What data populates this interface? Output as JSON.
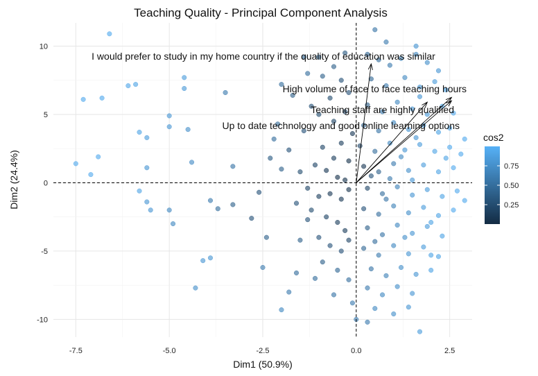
{
  "chart_data": {
    "type": "scatter",
    "title": "Teaching Quality - Principal Component Analysis",
    "xlabel": "Dim1 (50.9%)",
    "ylabel": "Dim2 (24.4%)",
    "xlim": [
      -8.1,
      3.1
    ],
    "ylim": [
      -11.3,
      11.7
    ],
    "xticks": [
      -7.5,
      -5.0,
      -2.5,
      0.0,
      2.5
    ],
    "xtick_labels": [
      "-7.5",
      "-5.0",
      "-2.5",
      "0.0",
      "2.5"
    ],
    "yticks": [
      -10,
      -5,
      0,
      5,
      10
    ],
    "ytick_labels": [
      "-10",
      "-5",
      "0",
      "5",
      "10"
    ],
    "grid": true,
    "reference_lines": {
      "x": 0,
      "y": 0,
      "style": "dashed"
    },
    "legend": {
      "title": "cos2",
      "position": "right",
      "ticks": [
        0.25,
        0.5,
        0.75
      ],
      "tick_labels": [
        "0.25",
        "0.50",
        "0.75"
      ],
      "low_color": "#132B43",
      "high_color": "#56B1F7"
    },
    "variables": [
      {
        "name": "I would prefer to study in my home country if the quality of education was similar",
        "x": 0.4,
        "y": 8.7
      },
      {
        "name": "High volume of face to face teaching hours",
        "x": 2.55,
        "y": 6.25
      },
      {
        "name": "Teaching staff are highly qualified",
        "x": 1.9,
        "y": 5.9
      },
      {
        "name": "Up to date technology and good online learning options",
        "x": 2.55,
        "y": 6.0
      }
    ],
    "points": [
      [
        -6.6,
        10.9,
        0.95
      ],
      [
        -7.3,
        6.1,
        0.95
      ],
      [
        -6.8,
        6.2,
        0.95
      ],
      [
        -6.1,
        7.1,
        0.92
      ],
      [
        -5.9,
        7.2,
        0.9
      ],
      [
        -5.8,
        3.7,
        0.9
      ],
      [
        -5.6,
        3.3,
        0.85
      ],
      [
        -4.6,
        7.7,
        0.85
      ],
      [
        -4.6,
        6.9,
        0.82
      ],
      [
        -5.0,
        4.9,
        0.8
      ],
      [
        -5.0,
        4.1,
        0.8
      ],
      [
        -4.5,
        3.9,
        0.75
      ],
      [
        -4.4,
        1.5,
        0.72
      ],
      [
        -5.6,
        1.1,
        0.8
      ],
      [
        -7.5,
        1.4,
        0.95
      ],
      [
        -7.1,
        0.6,
        0.95
      ],
      [
        -6.9,
        1.9,
        0.95
      ],
      [
        -5.8,
        -0.6,
        0.9
      ],
      [
        -5.6,
        -1.4,
        0.8
      ],
      [
        -5.5,
        -2.0,
        0.8
      ],
      [
        -5.0,
        -2.0,
        0.7
      ],
      [
        -4.9,
        -3.0,
        0.7
      ],
      [
        -3.9,
        -5.5,
        0.8
      ],
      [
        -4.1,
        -5.7,
        0.8
      ],
      [
        -4.3,
        -7.7,
        0.75
      ],
      [
        -3.5,
        6.6,
        0.6
      ],
      [
        -3.3,
        1.2,
        0.55
      ],
      [
        -3.3,
        -1.6,
        0.4
      ],
      [
        -2.8,
        -2.6,
        0.3
      ],
      [
        -3.9,
        -1.3,
        0.6
      ],
      [
        -3.7,
        -1.9,
        0.5
      ],
      [
        -2.1,
        4.3,
        0.5
      ],
      [
        -2.0,
        7.2,
        0.5
      ],
      [
        -2.0,
        1.0,
        0.4
      ],
      [
        -2.2,
        3.2,
        0.5
      ],
      [
        -2.3,
        1.8,
        0.35
      ],
      [
        -2.6,
        -0.7,
        0.3
      ],
      [
        -2.4,
        -4.0,
        0.4
      ],
      [
        -2.5,
        -6.2,
        0.6
      ],
      [
        -2.0,
        -9.3,
        0.7
      ],
      [
        -1.8,
        -8.0,
        0.6
      ],
      [
        -1.6,
        -6.6,
        0.5
      ],
      [
        -1.5,
        -4.2,
        0.4
      ],
      [
        -1.3,
        -2.7,
        0.3
      ],
      [
        -1.7,
        6.4,
        0.4
      ],
      [
        -1.4,
        9.2,
        0.5
      ],
      [
        -1.3,
        8.0,
        0.5
      ],
      [
        -1.0,
        9.2,
        0.45
      ],
      [
        -0.9,
        7.8,
        0.4
      ],
      [
        -1.2,
        5.6,
        0.3
      ],
      [
        -0.6,
        8.5,
        0.4
      ],
      [
        -0.4,
        7.5,
        0.3
      ],
      [
        -0.3,
        9.5,
        0.35
      ],
      [
        -0.7,
        6.2,
        0.25
      ],
      [
        -0.2,
        6.6,
        0.3
      ],
      [
        -1.8,
        2.4,
        0.3
      ],
      [
        -1.5,
        0.8,
        0.25
      ],
      [
        -1.1,
        1.3,
        0.2
      ],
      [
        -0.8,
        0.9,
        0.1
      ],
      [
        -0.5,
        0.4,
        0.05
      ],
      [
        -0.3,
        0.2,
        0.05
      ],
      [
        -0.6,
        1.8,
        0.15
      ],
      [
        -0.9,
        2.6,
        0.2
      ],
      [
        -0.4,
        2.9,
        0.15
      ],
      [
        -1.3,
        -0.4,
        0.2
      ],
      [
        -1.0,
        -1.0,
        0.15
      ],
      [
        -0.7,
        -0.8,
        0.1
      ],
      [
        -0.4,
        -1.2,
        0.1
      ],
      [
        -0.2,
        -0.5,
        0.05
      ],
      [
        -1.2,
        -2.0,
        0.25
      ],
      [
        -0.8,
        -2.5,
        0.2
      ],
      [
        -0.5,
        -2.9,
        0.15
      ],
      [
        -0.3,
        -3.5,
        0.15
      ],
      [
        -1.0,
        -4.0,
        0.3
      ],
      [
        -0.7,
        -4.6,
        0.3
      ],
      [
        -0.4,
        -5.0,
        0.3
      ],
      [
        -0.2,
        -4.2,
        0.2
      ],
      [
        -0.9,
        -5.8,
        0.4
      ],
      [
        -0.5,
        -6.4,
        0.45
      ],
      [
        -0.2,
        -7.1,
        0.5
      ],
      [
        -1.1,
        -7.0,
        0.5
      ],
      [
        -0.6,
        -8.2,
        0.55
      ],
      [
        -0.1,
        -8.8,
        0.6
      ],
      [
        -1.4,
        3.8,
        0.3
      ],
      [
        -0.6,
        4.5,
        0.2
      ],
      [
        -0.3,
        5.2,
        0.2
      ],
      [
        -1.0,
        5.0,
        0.25
      ],
      [
        -0.1,
        3.6,
        0.1
      ],
      [
        -0.2,
        1.6,
        0.05
      ],
      [
        -1.6,
        -1.5,
        0.3
      ],
      [
        0.3,
        9.4,
        0.45
      ],
      [
        0.6,
        9.0,
        0.5
      ],
      [
        0.9,
        8.6,
        0.6
      ],
      [
        1.2,
        9.1,
        0.65
      ],
      [
        1.6,
        9.4,
        0.7
      ],
      [
        1.9,
        8.8,
        0.75
      ],
      [
        2.2,
        8.2,
        0.8
      ],
      [
        1.6,
        10.0,
        0.8
      ],
      [
        0.8,
        10.3,
        0.6
      ],
      [
        0.4,
        7.6,
        0.45
      ],
      [
        0.8,
        7.1,
        0.6
      ],
      [
        1.3,
        7.7,
        0.7
      ],
      [
        1.7,
        7.0,
        0.8
      ],
      [
        2.1,
        7.4,
        0.85
      ],
      [
        2.4,
        6.8,
        0.9
      ],
      [
        0.3,
        5.7,
        0.4
      ],
      [
        0.7,
        5.2,
        0.6
      ],
      [
        1.1,
        5.9,
        0.7
      ],
      [
        1.5,
        5.4,
        0.8
      ],
      [
        1.9,
        5.0,
        0.85
      ],
      [
        2.3,
        5.6,
        0.9
      ],
      [
        2.6,
        5.1,
        0.95
      ],
      [
        0.2,
        4.2,
        0.35
      ],
      [
        0.6,
        3.8,
        0.55
      ],
      [
        1.0,
        4.4,
        0.7
      ],
      [
        1.4,
        3.9,
        0.8
      ],
      [
        1.8,
        4.2,
        0.85
      ],
      [
        2.2,
        3.7,
        0.9
      ],
      [
        2.5,
        4.0,
        0.95
      ],
      [
        0.1,
        2.7,
        0.2
      ],
      [
        0.5,
        2.3,
        0.5
      ],
      [
        0.9,
        2.9,
        0.7
      ],
      [
        1.3,
        2.4,
        0.8
      ],
      [
        1.7,
        2.8,
        0.85
      ],
      [
        2.1,
        2.3,
        0.9
      ],
      [
        2.5,
        2.6,
        0.95
      ],
      [
        2.8,
        2.1,
        0.95
      ],
      [
        0.2,
        1.2,
        0.1
      ],
      [
        0.6,
        0.8,
        0.4
      ],
      [
        1.0,
        1.4,
        0.6
      ],
      [
        1.4,
        0.9,
        0.75
      ],
      [
        1.8,
        1.3,
        0.85
      ],
      [
        2.2,
        0.8,
        0.9
      ],
      [
        2.6,
        1.1,
        0.95
      ],
      [
        0.3,
        -0.4,
        0.2
      ],
      [
        0.7,
        -0.8,
        0.5
      ],
      [
        1.1,
        -0.3,
        0.65
      ],
      [
        1.5,
        -0.9,
        0.8
      ],
      [
        1.9,
        -0.5,
        0.85
      ],
      [
        2.3,
        -1.0,
        0.9
      ],
      [
        2.7,
        -0.6,
        0.95
      ],
      [
        0.2,
        -1.9,
        0.3
      ],
      [
        0.6,
        -2.3,
        0.5
      ],
      [
        1.0,
        -1.7,
        0.65
      ],
      [
        1.4,
        -2.2,
        0.75
      ],
      [
        1.8,
        -1.8,
        0.85
      ],
      [
        2.2,
        -2.4,
        0.9
      ],
      [
        2.6,
        -2.0,
        0.95
      ],
      [
        0.3,
        -3.3,
        0.4
      ],
      [
        0.7,
        -3.8,
        0.55
      ],
      [
        1.1,
        -3.1,
        0.7
      ],
      [
        1.5,
        -3.7,
        0.8
      ],
      [
        1.9,
        -3.2,
        0.85
      ],
      [
        2.3,
        -3.9,
        0.9
      ],
      [
        0.2,
        -4.8,
        0.45
      ],
      [
        0.6,
        -5.3,
        0.6
      ],
      [
        1.0,
        -4.6,
        0.7
      ],
      [
        1.4,
        -5.2,
        0.8
      ],
      [
        1.8,
        -4.7,
        0.85
      ],
      [
        2.2,
        -5.4,
        0.9
      ],
      [
        2.0,
        -5.3,
        0.9
      ],
      [
        0.4,
        -6.3,
        0.55
      ],
      [
        0.8,
        -6.8,
        0.65
      ],
      [
        1.2,
        -6.2,
        0.75
      ],
      [
        1.6,
        -6.7,
        0.8
      ],
      [
        2.0,
        -6.4,
        0.9
      ],
      [
        0.3,
        -7.7,
        0.6
      ],
      [
        0.7,
        -8.2,
        0.7
      ],
      [
        1.1,
        -7.6,
        0.75
      ],
      [
        1.5,
        -8.1,
        0.8
      ],
      [
        0.5,
        -9.2,
        0.7
      ],
      [
        1.0,
        -9.6,
        0.75
      ],
      [
        1.4,
        -9.1,
        0.8
      ],
      [
        0.0,
        -10.0,
        0.6
      ],
      [
        0.3,
        -10.2,
        0.6
      ],
      [
        1.7,
        -10.9,
        0.85
      ],
      [
        0.5,
        11.2,
        0.55
      ],
      [
        1.5,
        0.2,
        0.8
      ],
      [
        0.9,
        0.3,
        0.6
      ],
      [
        0.4,
        0.5,
        0.3
      ],
      [
        2.9,
        3.2,
        0.95
      ],
      [
        2.9,
        -1.3,
        0.95
      ],
      [
        2.4,
        1.8,
        0.9
      ],
      [
        1.2,
        1.9,
        0.7
      ],
      [
        0.8,
        -1.2,
        0.55
      ],
      [
        1.6,
        3.3,
        0.8
      ],
      [
        2.0,
        -2.9,
        0.9
      ],
      [
        0.5,
        -4.3,
        0.5
      ],
      [
        1.3,
        -4.0,
        0.75
      ],
      [
        1.7,
        6.3,
        0.8
      ]
    ]
  }
}
